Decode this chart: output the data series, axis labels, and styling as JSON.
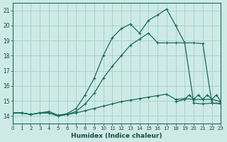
{
  "title": "",
  "xlabel": "Humidex (Indice chaleur)",
  "ylabel": "",
  "bg_color": "#ceeae5",
  "grid_color": "#a8d4cc",
  "line_color": "#1a6b5a",
  "x_min": 0,
  "x_max": 23,
  "y_min": 13.5,
  "y_max": 21.5,
  "yticks": [
    14,
    15,
    16,
    17,
    18,
    19,
    20,
    21
  ],
  "xticks": [
    0,
    1,
    2,
    3,
    4,
    5,
    6,
    7,
    8,
    9,
    10,
    11,
    12,
    13,
    14,
    15,
    16,
    17,
    18,
    19,
    20,
    21,
    22,
    23
  ],
  "series_main_x": [
    0,
    1,
    2,
    3,
    4,
    5,
    6,
    7,
    8,
    9,
    10,
    11,
    12,
    13,
    14,
    15,
    16,
    17,
    18,
    19,
    20,
    21,
    22,
    23
  ],
  "series_main_y": [
    14.2,
    14.2,
    14.1,
    14.2,
    14.3,
    14.05,
    14.15,
    14.5,
    15.4,
    16.5,
    18.0,
    19.2,
    19.8,
    20.1,
    19.5,
    20.35,
    20.7,
    21.1,
    20.0,
    18.85,
    18.85,
    18.8,
    14.85,
    14.8
  ],
  "series_mid_x": [
    0,
    1,
    2,
    3,
    4,
    5,
    6,
    7,
    8,
    9,
    10,
    11,
    12,
    13,
    14,
    15,
    16,
    17,
    18,
    19,
    20,
    21,
    22,
    23
  ],
  "series_mid_y": [
    14.2,
    14.2,
    14.1,
    14.2,
    14.2,
    14.0,
    14.1,
    14.3,
    14.8,
    15.5,
    16.5,
    17.3,
    18.0,
    18.7,
    19.1,
    19.5,
    18.85,
    18.85,
    18.85,
    18.85,
    14.85,
    14.8,
    14.85,
    14.85
  ],
  "series_low_x": [
    0,
    1,
    2,
    3,
    4,
    5,
    6,
    7,
    8,
    9,
    10,
    11,
    12,
    13,
    14,
    15,
    16,
    17,
    18,
    19,
    20,
    21,
    22,
    23
  ],
  "series_low_y": [
    14.2,
    14.2,
    14.1,
    14.2,
    14.2,
    14.0,
    14.1,
    14.2,
    14.35,
    14.5,
    14.65,
    14.8,
    14.95,
    15.05,
    15.15,
    15.25,
    15.35,
    15.45,
    15.1,
    15.15,
    15.1,
    15.1,
    15.1,
    14.95
  ],
  "series_zigzag_x": [
    18,
    19,
    19.5,
    20,
    20.5,
    21,
    21.5,
    22,
    22.5,
    23
  ],
  "series_zigzag_y": [
    14.95,
    15.1,
    15.4,
    15.1,
    15.4,
    15.1,
    15.4,
    15.1,
    15.4,
    14.95
  ]
}
